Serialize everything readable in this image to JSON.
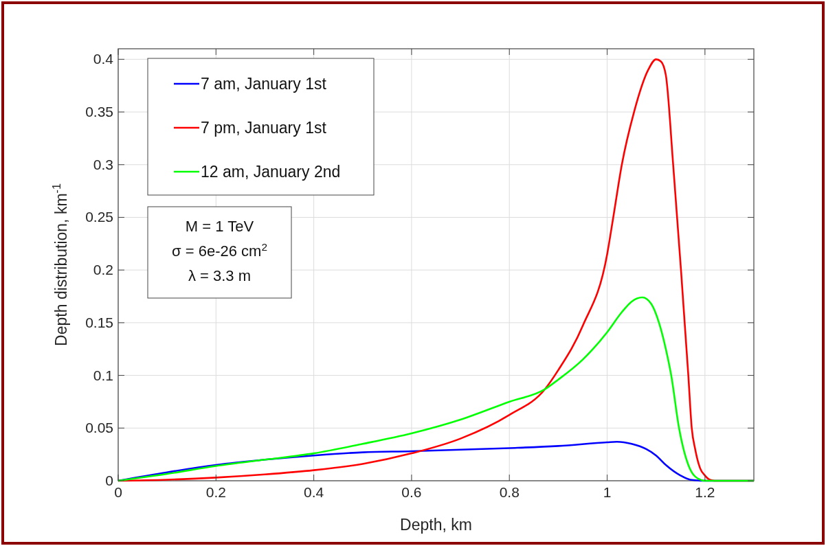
{
  "chart_data": {
    "type": "line",
    "xlabel": "Depth, km",
    "ylabel": "Depth distribution, km$^{-1}$",
    "xlim": [
      0,
      1.3
    ],
    "xticks": [
      0,
      0.2,
      0.4,
      0.6,
      0.8,
      1,
      1.2
    ],
    "ylim": [
      0,
      0.41
    ],
    "yticks": [
      0,
      0.05,
      0.1,
      0.15,
      0.2,
      0.25,
      0.3,
      0.35,
      0.4
    ],
    "grid": true,
    "legend": "top left",
    "line_style": "solid",
    "annotations": [
      "M = 1 TeV",
      "σ = 6e-26 cm$^{2}$",
      "λ = 3.3 m"
    ],
    "series": [
      {
        "name": "7 am, January 1st",
        "color": "#0000ff",
        "x": [
          0,
          0.1,
          0.2,
          0.3,
          0.4,
          0.5,
          0.6,
          0.7,
          0.8,
          0.9,
          1,
          1.02,
          1.05,
          1.08,
          1.1,
          1.12,
          1.15,
          1.17,
          1.2,
          1.3
        ],
        "values": [
          0,
          0.008,
          0.015,
          0.02,
          0.024,
          0.027,
          0.028,
          0.0295,
          0.031,
          0.033,
          0.0365,
          0.037,
          0.035,
          0.03,
          0.024,
          0.015,
          0.005,
          0.001,
          0,
          0
        ]
      },
      {
        "name": "7 pm, January 1st",
        "color": "#ff0000",
        "x": [
          0,
          0.1,
          0.2,
          0.3,
          0.4,
          0.5,
          0.6,
          0.7,
          0.8,
          0.873,
          0.9,
          0.95,
          1,
          1.0125,
          1.03,
          1.055,
          1.084,
          1.1,
          1.11,
          1.12,
          1.135,
          1.151,
          1.166,
          1.173,
          1.18,
          1.19,
          1.2,
          1.21,
          1.22,
          1.3
        ],
        "values": [
          0,
          0.001,
          0.003,
          0.006,
          0.01,
          0.016,
          0.026,
          0.04,
          0.0625,
          0.087,
          0.105,
          0.147,
          0.215,
          0.25,
          0.3,
          0.35,
          0.39,
          0.4,
          0.398,
          0.385,
          0.3,
          0.2,
          0.1,
          0.05,
          0.03,
          0.012,
          0.005,
          0.001,
          0,
          0
        ]
      },
      {
        "name": "12 am, January 2nd",
        "color": "#00ff00",
        "x": [
          0,
          0.1,
          0.2,
          0.3,
          0.4,
          0.5,
          0.6,
          0.7,
          0.8,
          0.873,
          0.9,
          0.95,
          1,
          1.03,
          1.05,
          1.072,
          1.09,
          1.106,
          1.12,
          1.131,
          1.147,
          1.166,
          1.18,
          1.2,
          1.3
        ],
        "values": [
          0,
          0.0065,
          0.014,
          0.02,
          0.026,
          0.035,
          0.045,
          0.058,
          0.075,
          0.087,
          0.096,
          0.115,
          0.141,
          0.16,
          0.17,
          0.174,
          0.168,
          0.15,
          0.125,
          0.1,
          0.05,
          0.015,
          0.004,
          0,
          0
        ]
      }
    ]
  }
}
